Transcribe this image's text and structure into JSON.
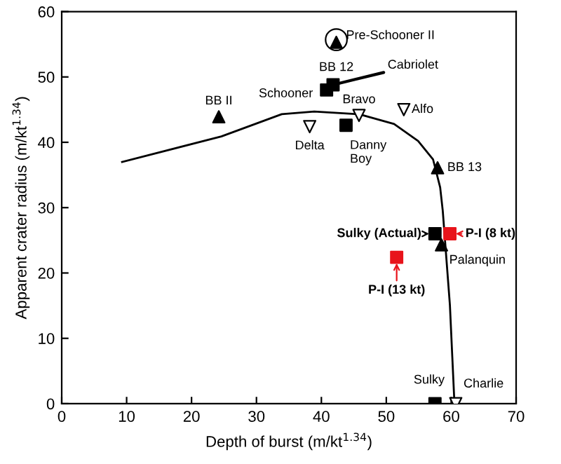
{
  "chart_data": {
    "type": "scatter",
    "xlabel": "Depth of burst (m/kt$^{1.34}$)",
    "ylabel": "Apparent crater radius (m/kt$^{1.34}$)",
    "xlim": [
      0,
      70
    ],
    "ylim": [
      0,
      60
    ],
    "xticks": [
      0,
      10,
      20,
      30,
      40,
      50,
      60,
      70
    ],
    "yticks": [
      0,
      10,
      20,
      30,
      40,
      50,
      60
    ],
    "grid": false,
    "legend": false,
    "series": [
      {
        "type": "line",
        "color": "#000000",
        "marker": "none",
        "line_style": "solid",
        "x": [
          9.3,
          24.6,
          33.9,
          38.9,
          45.8,
          51.2,
          54.9,
          57.2,
          58.3,
          58.7,
          59.8,
          60.5
        ],
        "values": [
          37.0,
          40.9,
          44.3,
          44.7,
          44.3,
          42.8,
          40.2,
          37.4,
          33.1,
          29.5,
          15.1,
          0
        ]
      },
      {
        "color": "#000000",
        "marker": "triangle",
        "x": [
          24.2,
          42.3,
          57.9,
          58.5
        ],
        "values": [
          43.9,
          55.3,
          36.1,
          24.3
        ]
      },
      {
        "color": "#ffffff",
        "marker": "triangle_down",
        "x": [
          45.8,
          38.2,
          52.7,
          60.7
        ],
        "values": [
          44.1,
          42.4,
          45.0,
          0
        ]
      },
      {
        "color": "#000000",
        "marker": "square",
        "x": [
          40.8,
          41.8,
          43.8,
          57.5,
          57.5
        ],
        "values": [
          48.0,
          48.8,
          42.6,
          26.0,
          0
        ]
      },
      {
        "color": "#e8141b",
        "marker": "square",
        "x": [
          59.8,
          51.6
        ],
        "values": [
          26.0,
          22.4
        ]
      },
      {
        "color": "#ffffff",
        "marker": "circle",
        "x": [
          42.3
        ],
        "values": [
          55.7
        ]
      }
    ],
    "annotations": [
      {
        "text": "Pre-Schooner II",
        "x": 42.3,
        "y": 55.7
      },
      {
        "text": "BB 12",
        "x": 42.3,
        "y": 55.3
      },
      {
        "text": "BB II",
        "x": 24.2,
        "y": 43.9
      },
      {
        "text": "Schooner",
        "x": 40.8,
        "y": 48.0
      },
      {
        "text": "Cabriolet",
        "x": 41.8,
        "y": 48.8
      },
      {
        "text": "Bravo",
        "x": 45.8,
        "y": 44.1
      },
      {
        "text": "Delta",
        "x": 38.2,
        "y": 42.4
      },
      {
        "text": "Danny\nBoy",
        "x": 43.8,
        "y": 42.6
      },
      {
        "text": "Alfo",
        "x": 52.7,
        "y": 45.0
      },
      {
        "text": "BB 13",
        "x": 57.9,
        "y": 36.1
      },
      {
        "text": "Sulky (Actual)",
        "x": 57.5,
        "y": 26.0
      },
      {
        "text": "P-I (8 kt)",
        "x": 59.8,
        "y": 26.0
      },
      {
        "text": "Palanquin",
        "x": 58.5,
        "y": 24.3
      },
      {
        "text": "P-I (13 kt)",
        "x": 51.6,
        "y": 22.4
      },
      {
        "text": "Sulky",
        "x": 57.5,
        "y": 0
      },
      {
        "text": "Charlie",
        "x": 60.7,
        "y": 0
      }
    ]
  }
}
